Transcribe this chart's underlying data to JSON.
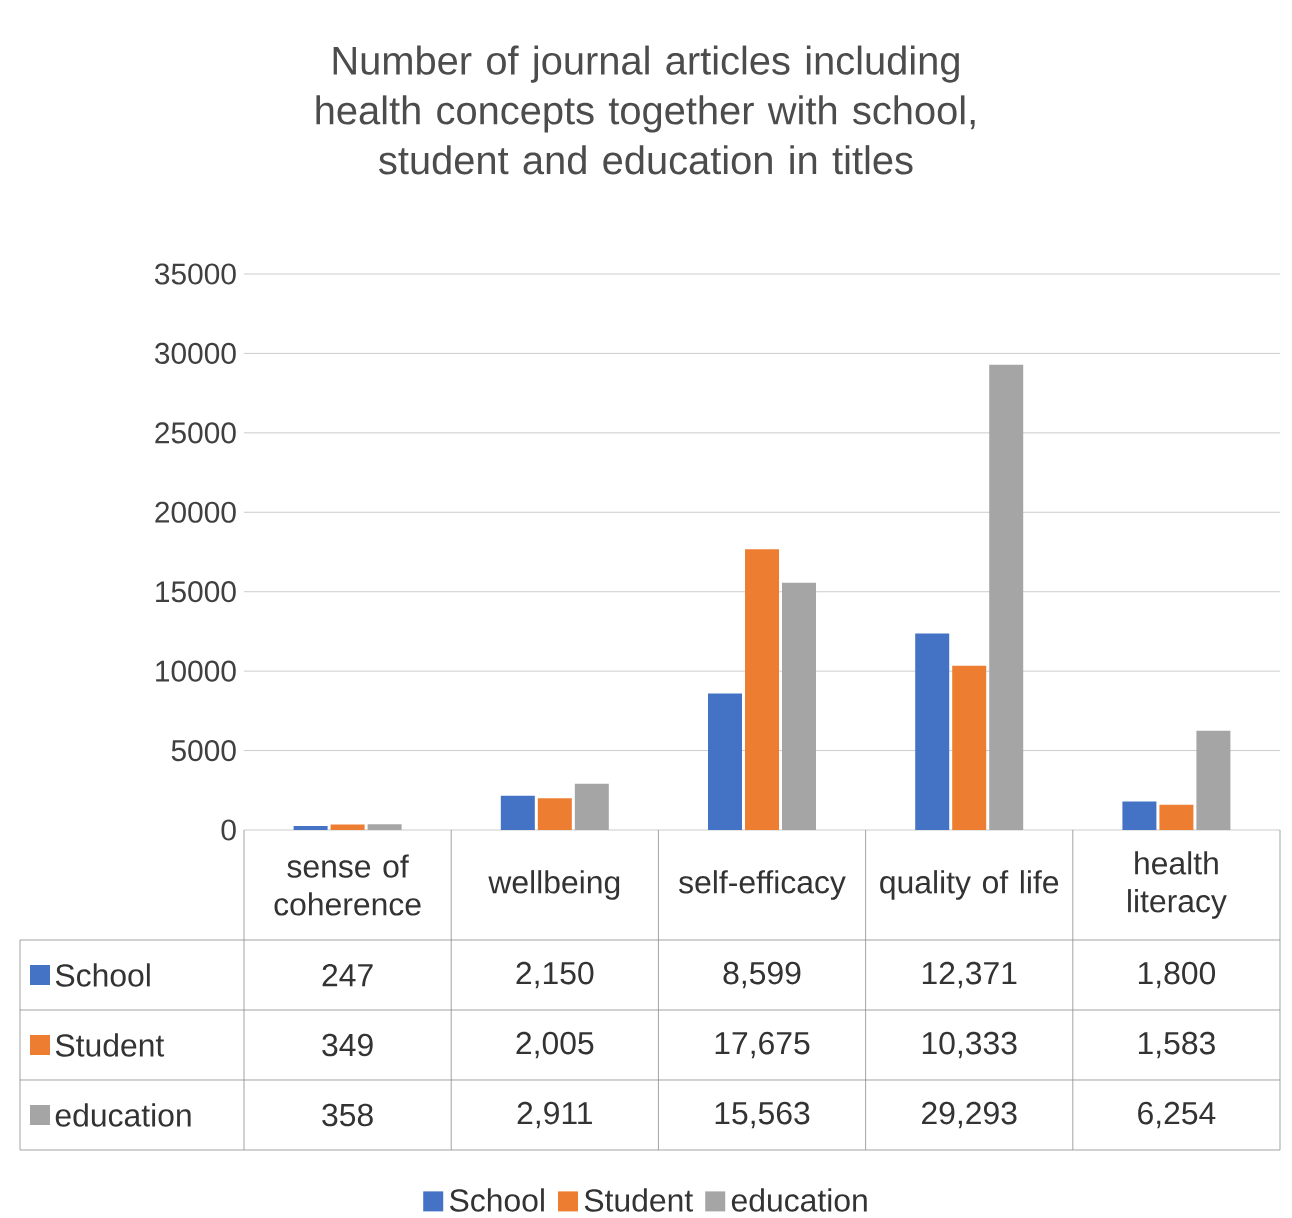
{
  "chart_data": {
    "type": "bar",
    "title": "Number of journal articles including health concepts together with school, student and education in titles",
    "categories": [
      "sense of coherence",
      "wellbeing",
      "self-efficacy",
      "quality of life",
      "health literacy"
    ],
    "series": [
      {
        "name": "School",
        "color": "#4472c4",
        "values": [
          247,
          2150,
          8599,
          12371,
          1800
        ],
        "value_labels": [
          "247",
          "2,150",
          "8,599",
          "12,371",
          "1,800"
        ]
      },
      {
        "name": "Student",
        "color": "#ed7d31",
        "values": [
          349,
          2005,
          17675,
          10333,
          1583
        ],
        "value_labels": [
          "349",
          "2,005",
          "17,675",
          "10,333",
          "1,583"
        ]
      },
      {
        "name": "education",
        "color": "#a5a5a5",
        "values": [
          358,
          2911,
          15563,
          29293,
          6254
        ],
        "value_labels": [
          "358",
          "2,911",
          "15,563",
          "29,293",
          "6,254"
        ]
      }
    ],
    "ylim": [
      0,
      35000
    ],
    "yticks": [
      0,
      5000,
      10000,
      15000,
      20000,
      25000,
      30000,
      35000
    ],
    "grid": "y",
    "legend": "bottom"
  }
}
